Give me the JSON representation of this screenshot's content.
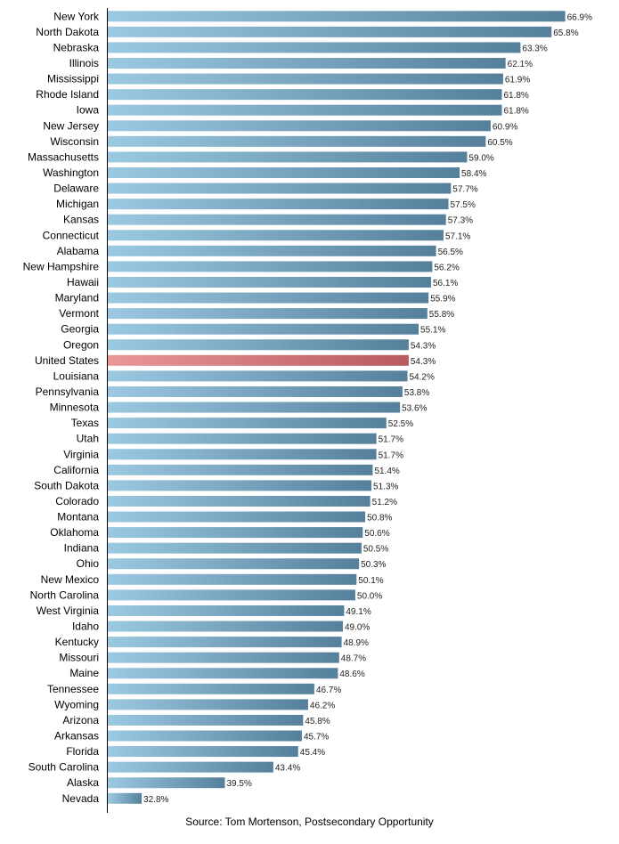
{
  "chart_data": {
    "type": "bar",
    "orientation": "horizontal",
    "categories": [
      "New York",
      "North Dakota",
      "Nebraska",
      "Illinois",
      "Mississippi",
      "Rhode Island",
      "Iowa",
      "New Jersey",
      "Wisconsin",
      "Massachusetts",
      "Washington",
      "Delaware",
      "Michigan",
      "Kansas",
      "Connecticut",
      "Alabama",
      "New Hampshire",
      "Hawaii",
      "Maryland",
      "Vermont",
      "Georgia",
      "Oregon",
      "United States",
      "Louisiana",
      "Pennsylvania",
      "Minnesota",
      "Texas",
      "Utah",
      "Virginia",
      "California",
      "South Dakota",
      "Colorado",
      "Montana",
      "Oklahoma",
      "Indiana",
      "Ohio",
      "New Mexico",
      "North Carolina",
      "West Virginia",
      "Idaho",
      "Kentucky",
      "Missouri",
      "Maine",
      "Tennessee",
      "Wyoming",
      "Arizona",
      "Arkansas",
      "Florida",
      "South Carolina",
      "Alaska",
      "Nevada"
    ],
    "values": [
      66.9,
      65.8,
      63.3,
      62.1,
      61.9,
      61.8,
      61.8,
      60.9,
      60.5,
      59.0,
      58.4,
      57.7,
      57.5,
      57.3,
      57.1,
      56.5,
      56.2,
      56.1,
      55.9,
      55.8,
      55.1,
      54.3,
      54.3,
      54.2,
      53.8,
      53.6,
      52.5,
      51.7,
      51.7,
      51.4,
      51.3,
      51.2,
      50.8,
      50.6,
      50.5,
      50.3,
      50.1,
      50.0,
      49.1,
      49.0,
      48.9,
      48.7,
      48.6,
      46.7,
      46.2,
      45.8,
      45.7,
      45.4,
      43.4,
      39.5,
      32.8
    ],
    "value_labels": [
      "66.9%",
      "65.8%",
      "63.3%",
      "62.1%",
      "61.9%",
      "61.8%",
      "61.8%",
      "60.9%",
      "60.5%",
      "59.0%",
      "58.4%",
      "57.7%",
      "57.5%",
      "57.3%",
      "57.1%",
      "56.5%",
      "56.2%",
      "56.1%",
      "55.9%",
      "55.8%",
      "55.1%",
      "54.3%",
      "54.3%",
      "54.2%",
      "53.8%",
      "53.6%",
      "52.5%",
      "51.7%",
      "51.7%",
      "51.4%",
      "51.3%",
      "51.2%",
      "50.8%",
      "50.6%",
      "50.5%",
      "50.3%",
      "50.1%",
      "50.0%",
      "49.1%",
      "49.0%",
      "48.9%",
      "48.7%",
      "48.6%",
      "46.7%",
      "46.2%",
      "45.8%",
      "45.7%",
      "45.4%",
      "43.4%",
      "39.5%",
      "32.8%"
    ],
    "highlight_category": "United States",
    "xlim": [
      30,
      67
    ],
    "title": "",
    "xlabel": "",
    "ylabel": "",
    "grid": false,
    "legend": "none",
    "source": "Source: Tom Mortenson, Postsecondary Opportunity",
    "colors": {
      "bar_light": "#9cc9e2",
      "bar_dark": "#55809c",
      "highlight_light": "#ea9797",
      "highlight_dark": "#b85a5e",
      "axis": "#000000"
    }
  }
}
